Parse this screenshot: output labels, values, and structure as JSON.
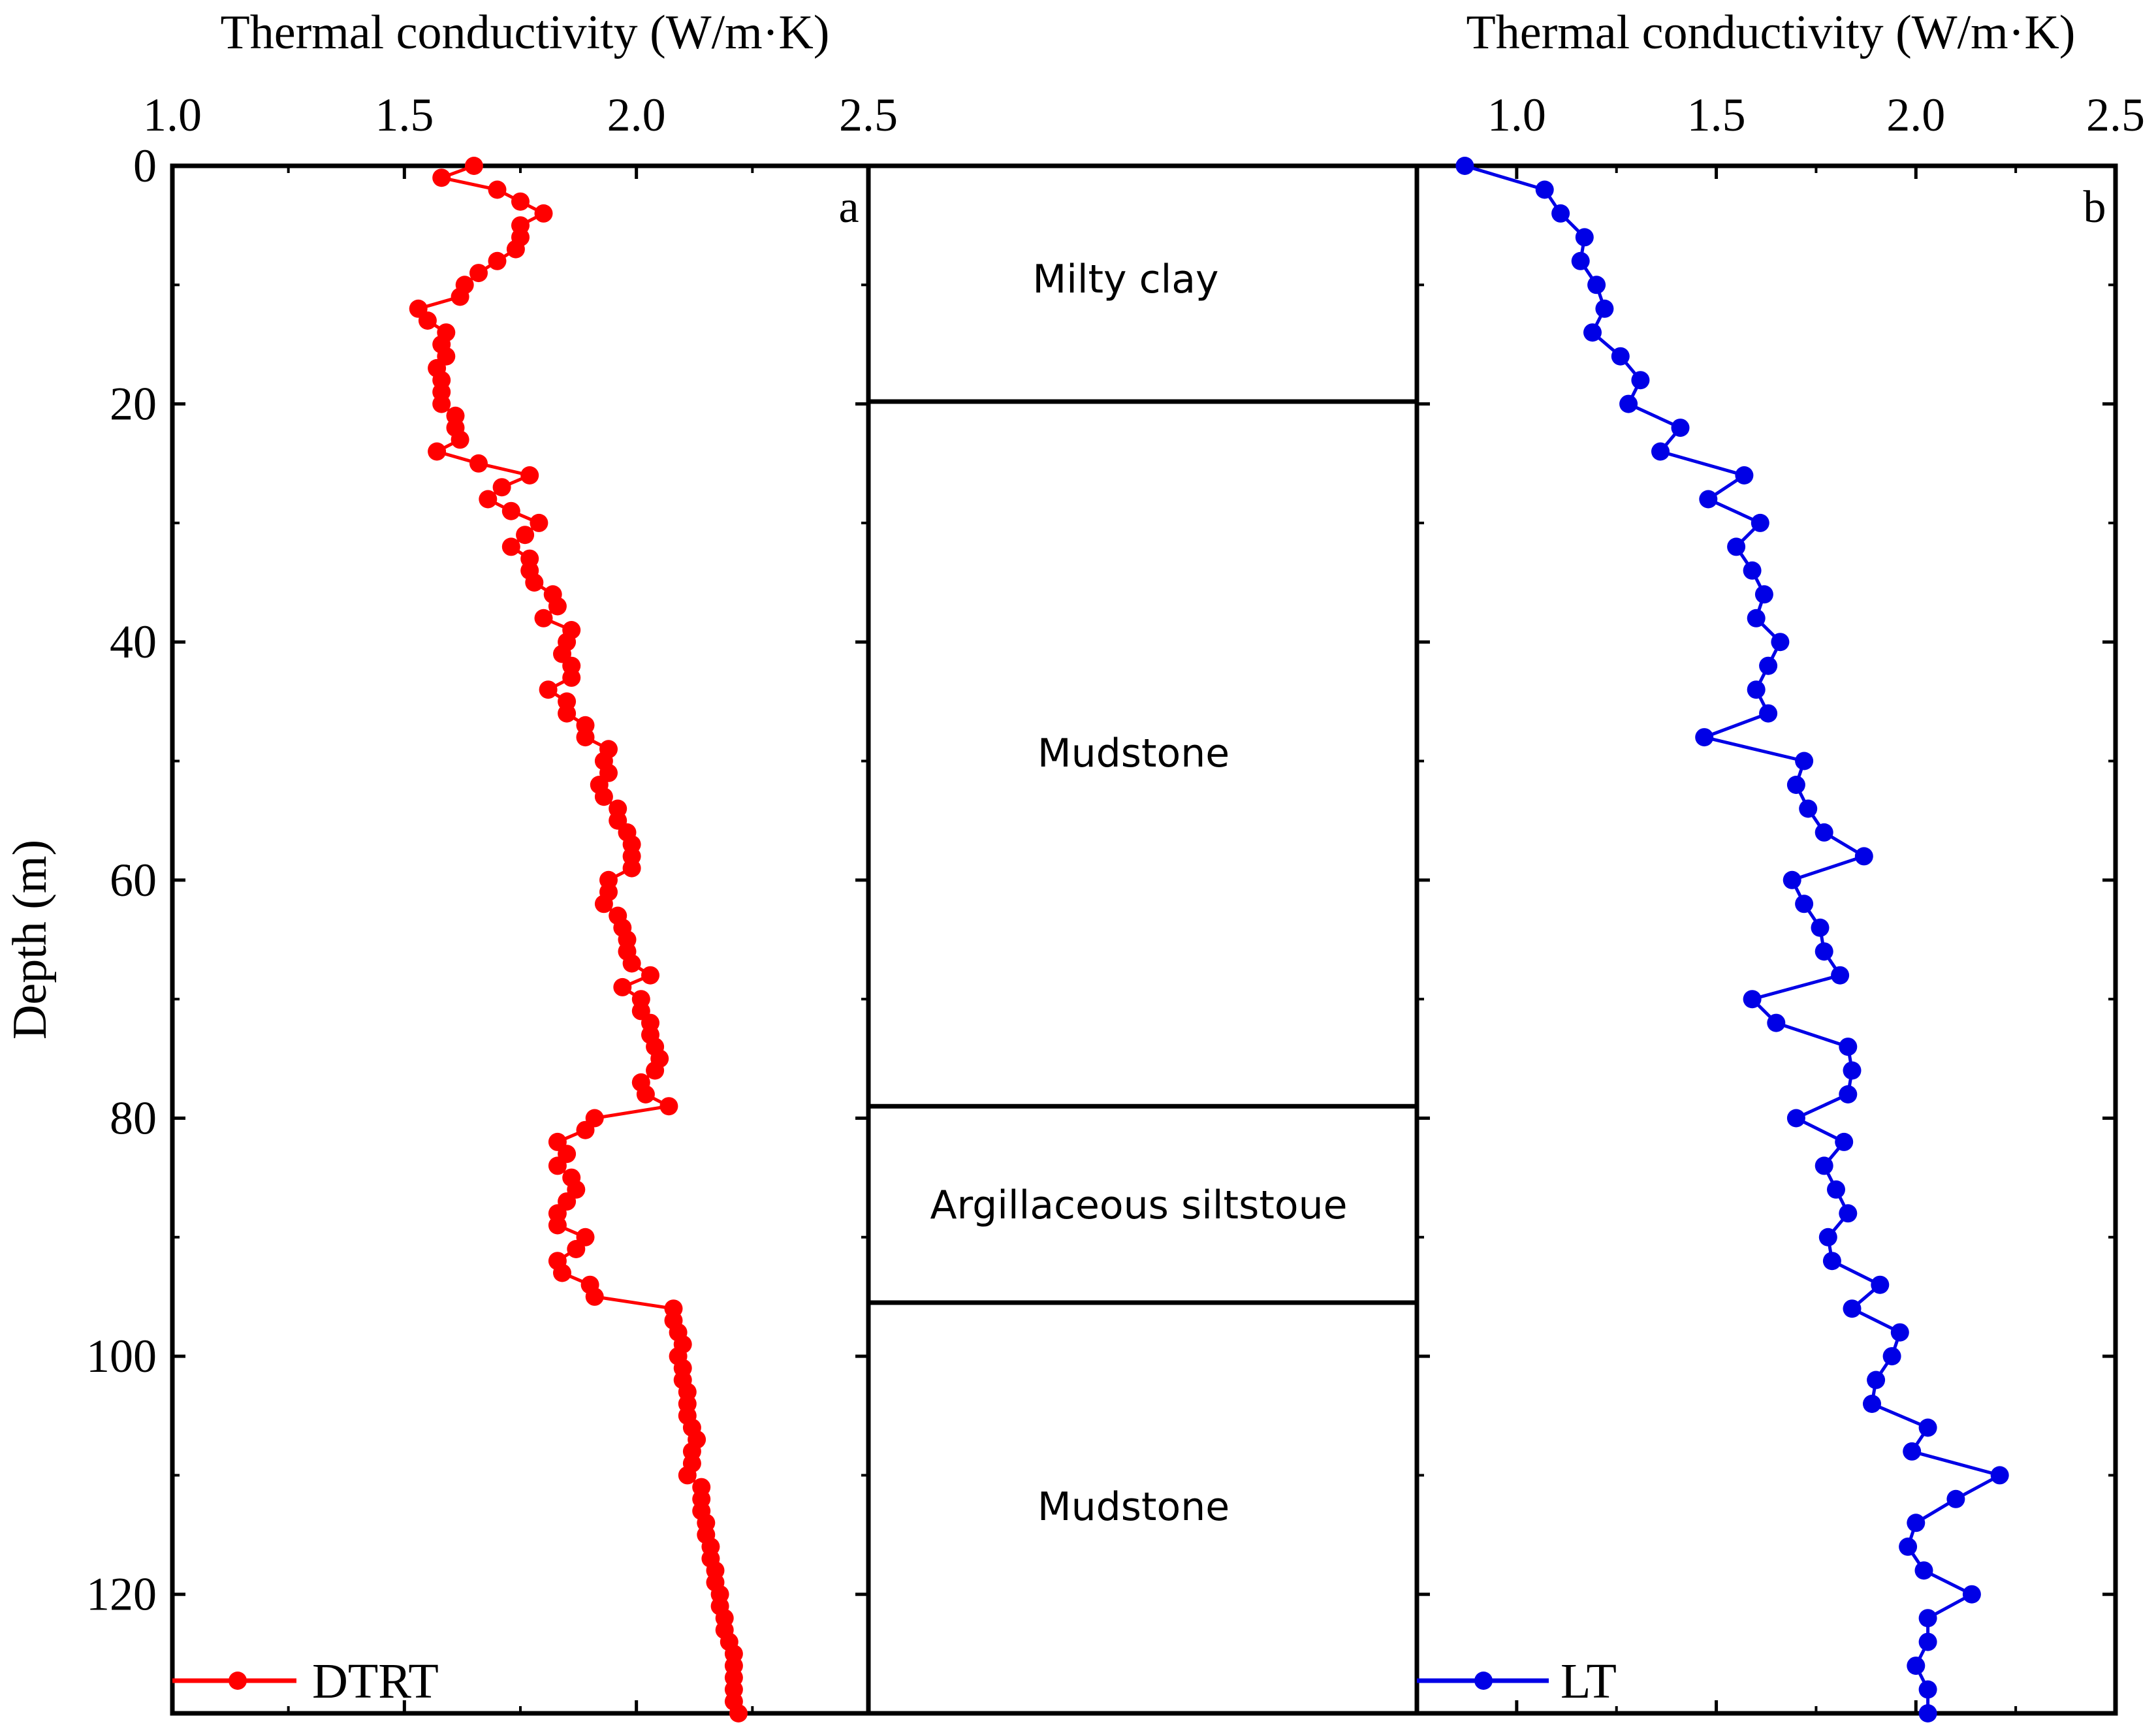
{
  "chart_data": {
    "type": "line",
    "shared_y": {
      "label": "Depth (m)",
      "ylim": [
        0,
        130
      ],
      "ticks": [
        0,
        20,
        40,
        60,
        80,
        100,
        120
      ],
      "tick_labels": [
        "0",
        "20",
        "40",
        "60",
        "80",
        "100",
        "120"
      ],
      "inverted": true
    },
    "panels": [
      {
        "id": "a",
        "letter": "a",
        "xlabel": "Thermal conductivity (W/m·K)",
        "xlim": [
          1.0,
          2.5
        ],
        "xticks": [
          1.0,
          1.5,
          2.0,
          2.5
        ],
        "xtick_labels": [
          "1.0",
          "1.5",
          "2.0",
          "2.5"
        ],
        "series": [
          {
            "name": "DTRT",
            "color": "#ff0000",
            "marker": "circle",
            "points": [
              [
                1.65,
                0
              ],
              [
                1.58,
                1
              ],
              [
                1.7,
                2
              ],
              [
                1.75,
                3
              ],
              [
                1.8,
                4
              ],
              [
                1.75,
                5
              ],
              [
                1.75,
                6
              ],
              [
                1.74,
                7
              ],
              [
                1.7,
                8
              ],
              [
                1.66,
                9
              ],
              [
                1.63,
                10
              ],
              [
                1.62,
                11
              ],
              [
                1.53,
                12
              ],
              [
                1.55,
                13
              ],
              [
                1.59,
                14
              ],
              [
                1.58,
                15
              ],
              [
                1.59,
                16
              ],
              [
                1.57,
                17
              ],
              [
                1.58,
                18
              ],
              [
                1.58,
                19
              ],
              [
                1.58,
                20
              ],
              [
                1.61,
                21
              ],
              [
                1.61,
                22
              ],
              [
                1.62,
                23
              ],
              [
                1.57,
                24
              ],
              [
                1.66,
                25
              ],
              [
                1.77,
                26
              ],
              [
                1.71,
                27
              ],
              [
                1.68,
                28
              ],
              [
                1.73,
                29
              ],
              [
                1.79,
                30
              ],
              [
                1.76,
                31
              ],
              [
                1.73,
                32
              ],
              [
                1.77,
                33
              ],
              [
                1.77,
                34
              ],
              [
                1.78,
                35
              ],
              [
                1.82,
                36
              ],
              [
                1.83,
                37
              ],
              [
                1.8,
                38
              ],
              [
                1.86,
                39
              ],
              [
                1.85,
                40
              ],
              [
                1.84,
                41
              ],
              [
                1.86,
                42
              ],
              [
                1.86,
                43
              ],
              [
                1.81,
                44
              ],
              [
                1.85,
                45
              ],
              [
                1.85,
                46
              ],
              [
                1.89,
                47
              ],
              [
                1.89,
                48
              ],
              [
                1.94,
                49
              ],
              [
                1.93,
                50
              ],
              [
                1.94,
                51
              ],
              [
                1.92,
                52
              ],
              [
                1.93,
                53
              ],
              [
                1.96,
                54
              ],
              [
                1.96,
                55
              ],
              [
                1.98,
                56
              ],
              [
                1.99,
                57
              ],
              [
                1.99,
                58
              ],
              [
                1.99,
                59
              ],
              [
                1.94,
                60
              ],
              [
                1.94,
                61
              ],
              [
                1.93,
                62
              ],
              [
                1.96,
                63
              ],
              [
                1.97,
                64
              ],
              [
                1.98,
                65
              ],
              [
                1.98,
                66
              ],
              [
                1.99,
                67
              ],
              [
                2.03,
                68
              ],
              [
                1.97,
                69
              ],
              [
                2.01,
                70
              ],
              [
                2.01,
                71
              ],
              [
                2.03,
                72
              ],
              [
                2.03,
                73
              ],
              [
                2.04,
                74
              ],
              [
                2.05,
                75
              ],
              [
                2.04,
                76
              ],
              [
                2.01,
                77
              ],
              [
                2.02,
                78
              ],
              [
                2.07,
                79
              ],
              [
                1.91,
                80
              ],
              [
                1.89,
                81
              ],
              [
                1.83,
                82
              ],
              [
                1.85,
                83
              ],
              [
                1.83,
                84
              ],
              [
                1.86,
                85
              ],
              [
                1.87,
                86
              ],
              [
                1.85,
                87
              ],
              [
                1.83,
                88
              ],
              [
                1.83,
                89
              ],
              [
                1.89,
                90
              ],
              [
                1.87,
                91
              ],
              [
                1.83,
                92
              ],
              [
                1.84,
                93
              ],
              [
                1.9,
                94
              ],
              [
                1.91,
                95
              ],
              [
                2.08,
                96
              ],
              [
                2.08,
                97
              ],
              [
                2.09,
                98
              ],
              [
                2.1,
                99
              ],
              [
                2.09,
                100
              ],
              [
                2.1,
                101
              ],
              [
                2.1,
                102
              ],
              [
                2.11,
                103
              ],
              [
                2.11,
                104
              ],
              [
                2.11,
                105
              ],
              [
                2.12,
                106
              ],
              [
                2.13,
                107
              ],
              [
                2.12,
                108
              ],
              [
                2.12,
                109
              ],
              [
                2.11,
                110
              ],
              [
                2.14,
                111
              ],
              [
                2.14,
                112
              ],
              [
                2.14,
                113
              ],
              [
                2.15,
                114
              ],
              [
                2.15,
                115
              ],
              [
                2.16,
                116
              ],
              [
                2.16,
                117
              ],
              [
                2.17,
                118
              ],
              [
                2.17,
                119
              ],
              [
                2.18,
                120
              ],
              [
                2.18,
                121
              ],
              [
                2.19,
                122
              ],
              [
                2.19,
                123
              ],
              [
                2.2,
                124
              ],
              [
                2.21,
                125
              ],
              [
                2.21,
                126
              ],
              [
                2.21,
                127
              ],
              [
                2.21,
                128
              ],
              [
                2.21,
                129
              ],
              [
                2.22,
                130
              ]
            ]
          }
        ]
      },
      {
        "id": "b",
        "letter": "b",
        "xlabel": "Thermal conductivity (W/m·K)",
        "xlim": [
          0.75,
          2.5
        ],
        "xticks": [
          1.0,
          1.5,
          2.0,
          2.5
        ],
        "xtick_labels": [
          "1.0",
          "1.5",
          "2.0",
          "2.5"
        ],
        "series": [
          {
            "name": "LT",
            "color": "#0000e6",
            "marker": "circle",
            "points": [
              [
                0.87,
                0
              ],
              [
                1.07,
                2
              ],
              [
                1.11,
                4
              ],
              [
                1.17,
                6
              ],
              [
                1.16,
                8
              ],
              [
                1.2,
                10
              ],
              [
                1.22,
                12
              ],
              [
                1.19,
                14
              ],
              [
                1.26,
                16
              ],
              [
                1.31,
                18
              ],
              [
                1.28,
                20
              ],
              [
                1.41,
                22
              ],
              [
                1.36,
                24
              ],
              [
                1.57,
                26
              ],
              [
                1.48,
                28
              ],
              [
                1.61,
                30
              ],
              [
                1.55,
                32
              ],
              [
                1.59,
                34
              ],
              [
                1.62,
                36
              ],
              [
                1.6,
                38
              ],
              [
                1.66,
                40
              ],
              [
                1.63,
                42
              ],
              [
                1.6,
                44
              ],
              [
                1.63,
                46
              ],
              [
                1.47,
                48
              ],
              [
                1.72,
                50
              ],
              [
                1.7,
                52
              ],
              [
                1.73,
                54
              ],
              [
                1.77,
                56
              ],
              [
                1.87,
                58
              ],
              [
                1.69,
                60
              ],
              [
                1.72,
                62
              ],
              [
                1.76,
                64
              ],
              [
                1.77,
                66
              ],
              [
                1.81,
                68
              ],
              [
                1.59,
                70
              ],
              [
                1.65,
                72
              ],
              [
                1.83,
                74
              ],
              [
                1.84,
                76
              ],
              [
                1.83,
                78
              ],
              [
                1.7,
                80
              ],
              [
                1.82,
                82
              ],
              [
                1.77,
                84
              ],
              [
                1.8,
                86
              ],
              [
                1.83,
                88
              ],
              [
                1.78,
                90
              ],
              [
                1.79,
                92
              ],
              [
                1.91,
                94
              ],
              [
                1.84,
                96
              ],
              [
                1.96,
                98
              ],
              [
                1.94,
                100
              ],
              [
                1.9,
                102
              ],
              [
                1.89,
                104
              ],
              [
                2.03,
                106
              ],
              [
                1.99,
                108
              ],
              [
                2.21,
                110
              ],
              [
                2.1,
                112
              ],
              [
                2.0,
                114
              ],
              [
                1.98,
                116
              ],
              [
                2.02,
                118
              ],
              [
                2.14,
                120
              ],
              [
                2.03,
                122
              ],
              [
                2.03,
                124
              ],
              [
                2.0,
                126
              ],
              [
                2.03,
                128
              ],
              [
                2.03,
                130
              ]
            ]
          }
        ]
      }
    ],
    "strata": {
      "boundaries": [
        0,
        19.8,
        79.0,
        95.5,
        130
      ],
      "layers": [
        {
          "name": "Milty clay",
          "top": 0,
          "bottom": 19.8
        },
        {
          "name": "Mudstone",
          "top": 19.8,
          "bottom": 79.0
        },
        {
          "name": "Argillaceous siltstoue",
          "top": 79.0,
          "bottom": 95.5
        },
        {
          "name": "Mudstone",
          "top": 95.5,
          "bottom": 130
        }
      ]
    },
    "legend": [
      {
        "panel": "a",
        "label": "DTRT",
        "position": "bottom-left"
      },
      {
        "panel": "b",
        "label": "LT",
        "position": "bottom-left"
      }
    ]
  }
}
